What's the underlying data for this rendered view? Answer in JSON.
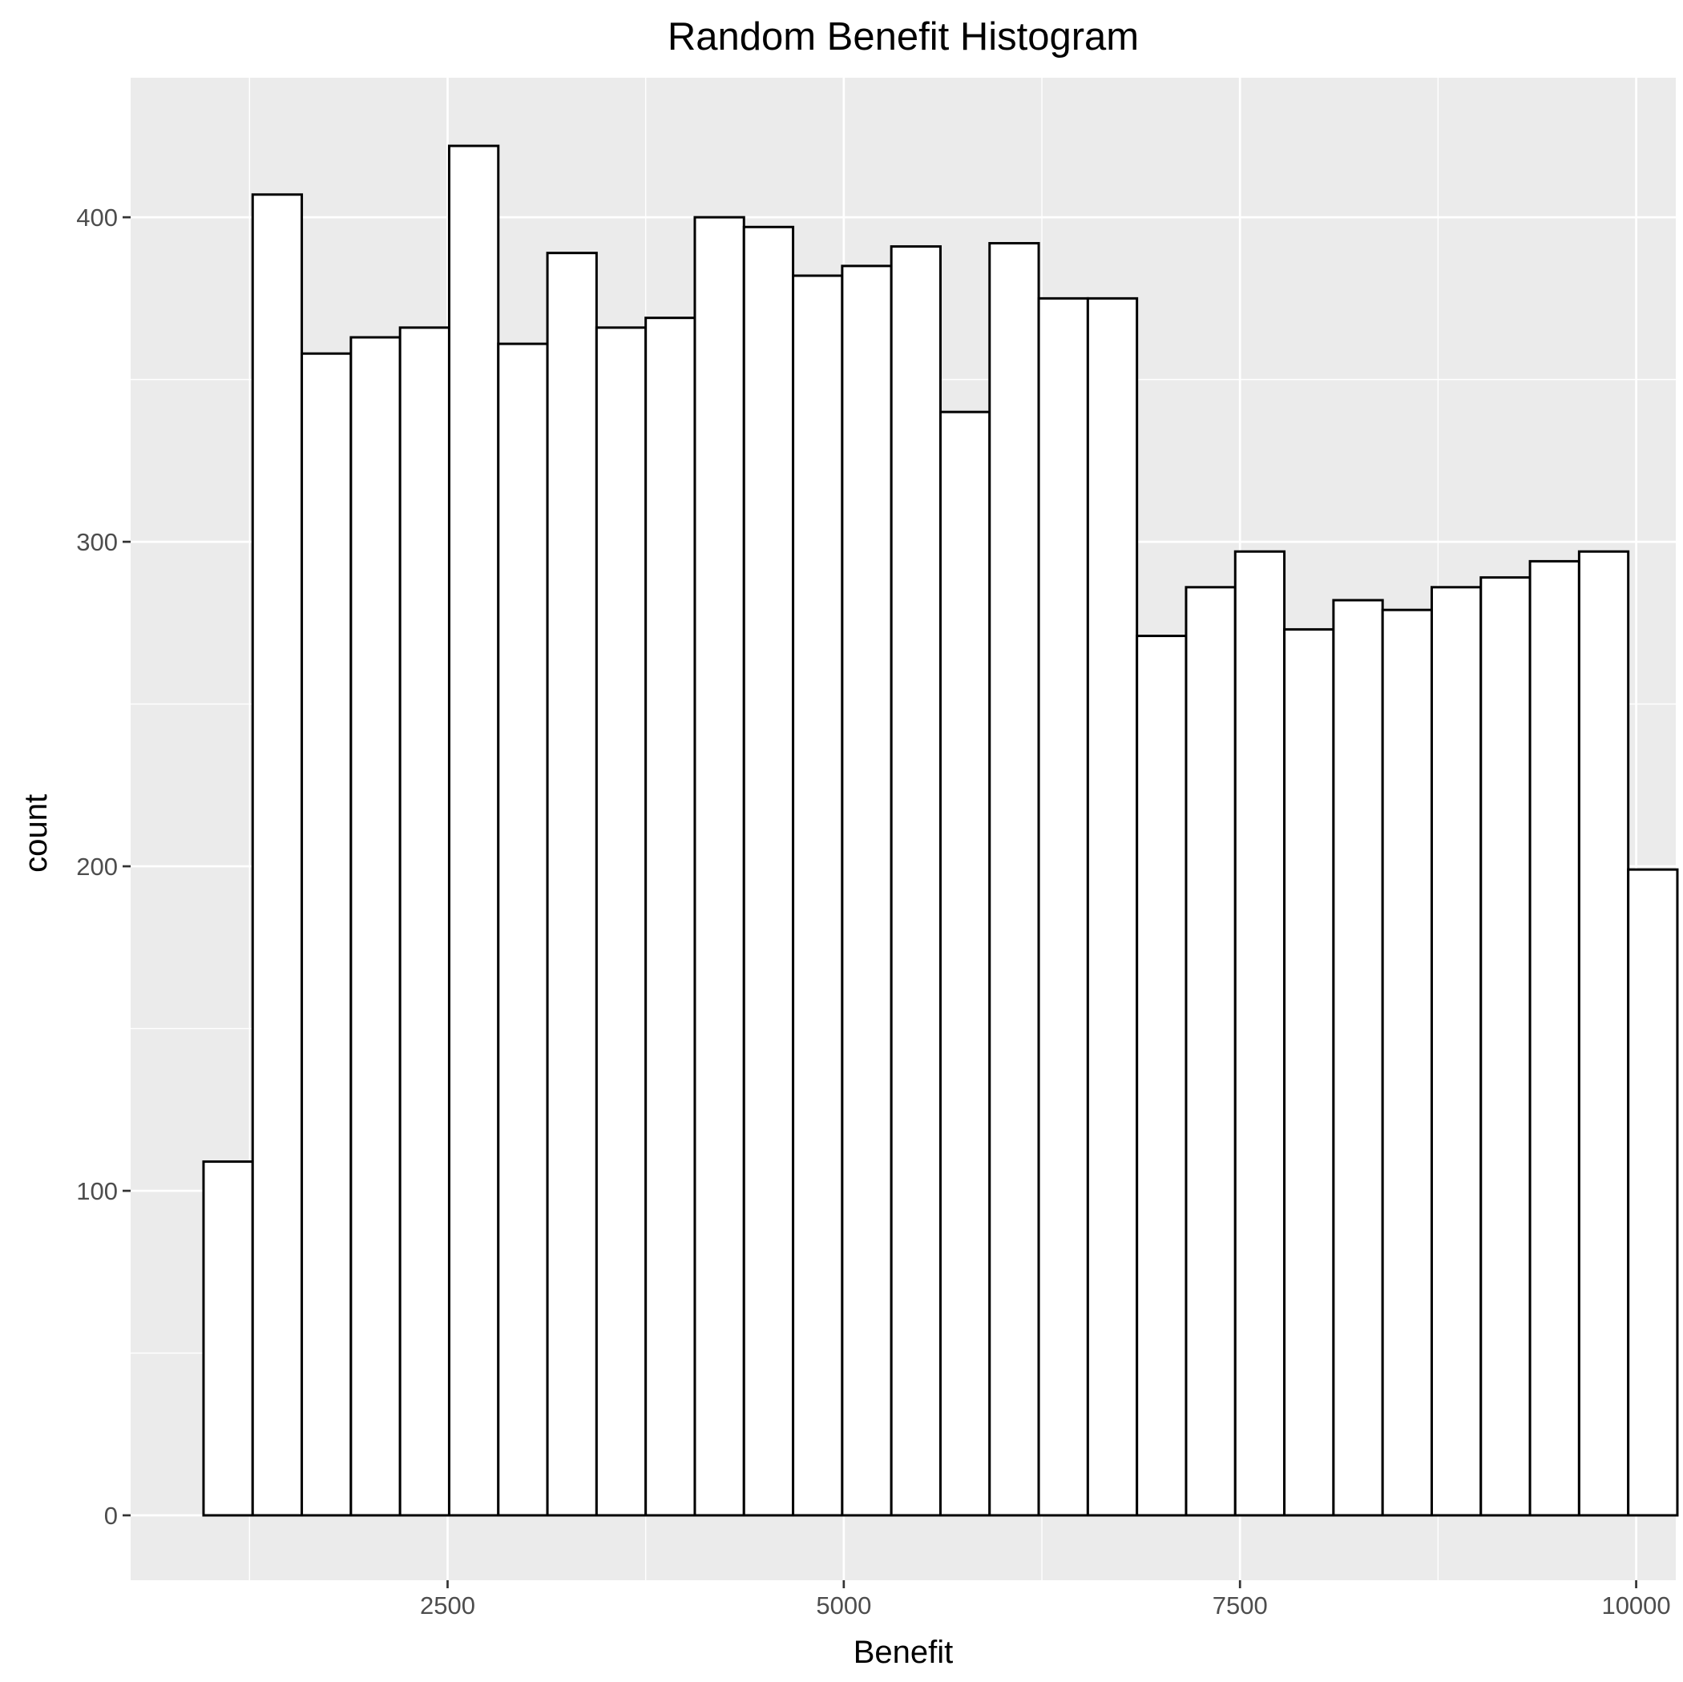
{
  "chart_data": {
    "type": "bar",
    "title": "Random Benefit Histogram",
    "xlabel": "Benefit",
    "ylabel": "count",
    "xlim": [
      500,
      10250
    ],
    "ylim": [
      -20,
      443
    ],
    "x_ticks": [
      2500,
      5000,
      7500,
      10000
    ],
    "x_tick_labels": [
      "2500",
      "5000",
      "7500",
      "10000"
    ],
    "y_ticks": [
      0,
      100,
      200,
      300,
      400
    ],
    "y_tick_labels": [
      "0",
      "100",
      "200",
      "300",
      "400"
    ],
    "bin_width": 310,
    "bins": [
      {
        "start": 960,
        "end": 1270,
        "count": 109
      },
      {
        "start": 1270,
        "end": 1580,
        "count": 407
      },
      {
        "start": 1580,
        "end": 1890,
        "count": 358
      },
      {
        "start": 1890,
        "end": 2200,
        "count": 363
      },
      {
        "start": 2200,
        "end": 2510,
        "count": 366
      },
      {
        "start": 2510,
        "end": 2820,
        "count": 422
      },
      {
        "start": 2820,
        "end": 3130,
        "count": 361
      },
      {
        "start": 3130,
        "end": 3440,
        "count": 389
      },
      {
        "start": 3440,
        "end": 3750,
        "count": 366
      },
      {
        "start": 3750,
        "end": 4060,
        "count": 369
      },
      {
        "start": 4060,
        "end": 4370,
        "count": 400
      },
      {
        "start": 4370,
        "end": 4680,
        "count": 397
      },
      {
        "start": 4680,
        "end": 4990,
        "count": 382
      },
      {
        "start": 4990,
        "end": 5300,
        "count": 385
      },
      {
        "start": 5300,
        "end": 5610,
        "count": 391
      },
      {
        "start": 5610,
        "end": 5920,
        "count": 340
      },
      {
        "start": 5920,
        "end": 6230,
        "count": 392
      },
      {
        "start": 6230,
        "end": 6540,
        "count": 375
      },
      {
        "start": 6540,
        "end": 6850,
        "count": 375
      },
      {
        "start": 6850,
        "end": 7160,
        "count": 271
      },
      {
        "start": 7160,
        "end": 7470,
        "count": 286
      },
      {
        "start": 7470,
        "end": 7780,
        "count": 297
      },
      {
        "start": 7780,
        "end": 8090,
        "count": 273
      },
      {
        "start": 8090,
        "end": 8400,
        "count": 282
      },
      {
        "start": 8400,
        "end": 8710,
        "count": 279
      },
      {
        "start": 8710,
        "end": 9020,
        "count": 286
      },
      {
        "start": 9020,
        "end": 9330,
        "count": 289
      },
      {
        "start": 9330,
        "end": 9640,
        "count": 294
      },
      {
        "start": 9640,
        "end": 9950,
        "count": 297
      },
      {
        "start": 9950,
        "end": 10260,
        "count": 199
      }
    ],
    "grid": true,
    "legend": "none",
    "colors": {
      "panel_background": "#ebebeb",
      "grid": "#ffffff",
      "bar_fill": "#ffffff",
      "bar_outline": "#000000",
      "tick_label": "#4d4d4d"
    }
  }
}
